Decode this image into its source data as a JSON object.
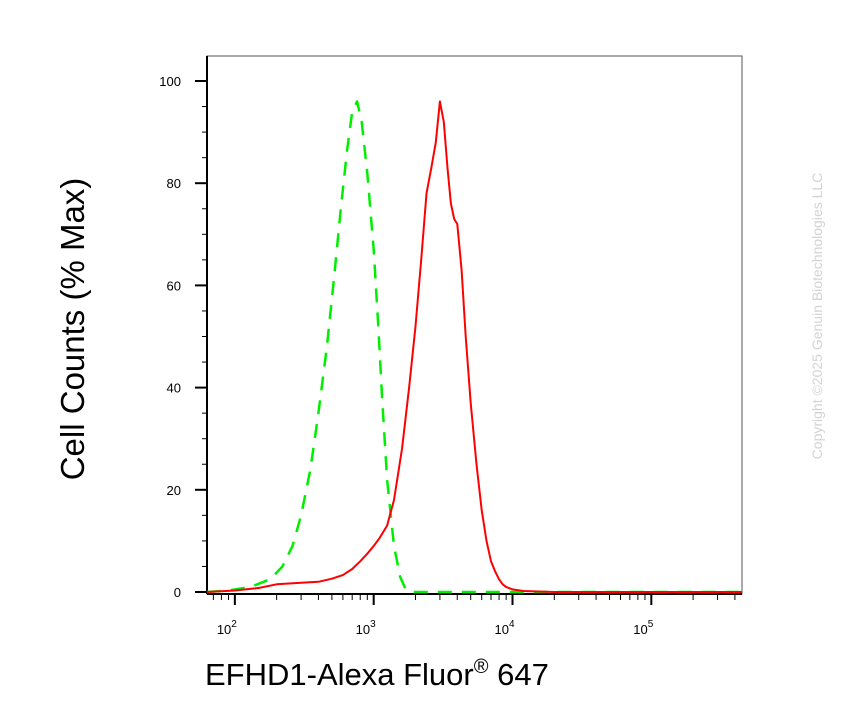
{
  "chart_data": {
    "type": "line",
    "title": "",
    "xlabel": "EFHD1-Alexa Fluor",
    "xlabel_mark": "®",
    "xlabel_suffix": " 647",
    "ylabel": "Cell Counts (% Max)",
    "xscale": "log",
    "xlim": [
      63,
      450000
    ],
    "ylim": [
      0,
      100
    ],
    "y_ticks": [
      0,
      20,
      40,
      60,
      80,
      100
    ],
    "x_ticks": [
      {
        "value": 100,
        "base": "10",
        "exp": "2"
      },
      {
        "value": 1000,
        "base": "10",
        "exp": "3"
      },
      {
        "value": 10000,
        "base": "10",
        "exp": "4"
      },
      {
        "value": 100000,
        "base": "10",
        "exp": "5"
      }
    ],
    "grid": false,
    "watermark": "Copyright ©2025 Genuin Biotechnologies LLC",
    "series": [
      {
        "color": "#00ee00",
        "style": "dashed",
        "x": [
          63,
          90,
          130,
          180,
          220,
          260,
          300,
          350,
          400,
          460,
          520,
          580,
          640,
          700,
          760,
          820,
          900,
          1000,
          1080,
          1150,
          1250,
          1400,
          1550,
          1700,
          1900,
          2200,
          3000,
          6000,
          20000,
          100000,
          450000
        ],
        "y": [
          0,
          0.3,
          1,
          2.5,
          5,
          9,
          15,
          24,
          35,
          48,
          62,
          75,
          86,
          94,
          96,
          92,
          82,
          67,
          52,
          38,
          22,
          9,
          3,
          0.5,
          0,
          0,
          0,
          0,
          0,
          0,
          0
        ]
      },
      {
        "color": "#ff0000",
        "style": "solid",
        "x": [
          63,
          100,
          150,
          200,
          300,
          400,
          500,
          600,
          700,
          800,
          900,
          1000,
          1100,
          1250,
          1400,
          1600,
          1800,
          2000,
          2200,
          2400,
          2600,
          2800,
          3000,
          3200,
          3400,
          3600,
          3800,
          4000,
          4300,
          4600,
          5000,
          5500,
          6000,
          6500,
          7000,
          7500,
          8000,
          8500,
          9000,
          10000,
          12000,
          20000,
          100000,
          450000
        ],
        "y": [
          0,
          0.3,
          0.8,
          1.5,
          1.8,
          2,
          2.6,
          3.3,
          4.5,
          6,
          7.5,
          9,
          10.5,
          13,
          18,
          28,
          40,
          52,
          65,
          78,
          83,
          88,
          96,
          92,
          83,
          76,
          73,
          72,
          63,
          50,
          37,
          25,
          16,
          10,
          6,
          4,
          2.5,
          1.5,
          1,
          0.5,
          0.2,
          0,
          0,
          0
        ]
      }
    ]
  }
}
